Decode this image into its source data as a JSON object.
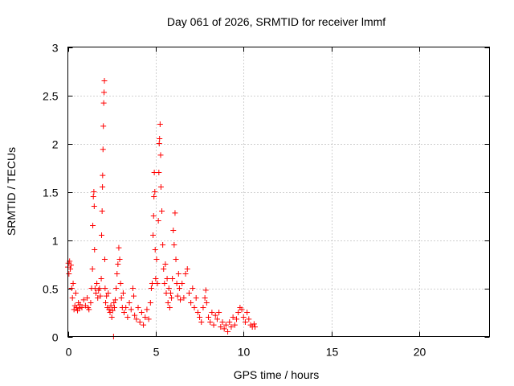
{
  "chart_data": {
    "type": "scatter",
    "title": "Day 061 of 2026, SRMTID for receiver lmmf",
    "xlabel": "GPS time / hours",
    "ylabel": "SRMTID / TECUs",
    "xlim": [
      0,
      24
    ],
    "ylim": [
      0,
      3
    ],
    "xticks": [
      0,
      5,
      10,
      15,
      20
    ],
    "xtick_labels": [
      "0",
      "5",
      "10",
      "15",
      "20"
    ],
    "yticks": [
      0,
      0.5,
      1,
      1.5,
      2,
      2.5,
      3
    ],
    "ytick_labels": [
      "0",
      "0.5",
      "1",
      "1.5",
      "2",
      "2.5",
      "3"
    ],
    "grid": true,
    "marker": "+",
    "series": [
      {
        "name": "SRMTID",
        "color": "#ff0000",
        "points": [
          [
            0.0,
            0.72
          ],
          [
            0.03,
            0.76
          ],
          [
            0.06,
            0.65
          ],
          [
            0.1,
            0.78
          ],
          [
            0.14,
            0.7
          ],
          [
            0.18,
            0.74
          ],
          [
            0.22,
            0.5
          ],
          [
            0.26,
            0.4
          ],
          [
            0.3,
            0.55
          ],
          [
            0.35,
            0.28
          ],
          [
            0.4,
            0.32
          ],
          [
            0.45,
            0.45
          ],
          [
            0.5,
            0.3
          ],
          [
            0.55,
            0.27
          ],
          [
            0.6,
            0.35
          ],
          [
            0.65,
            0.29
          ],
          [
            0.7,
            0.33
          ],
          [
            0.8,
            0.3
          ],
          [
            0.9,
            0.38
          ],
          [
            1.0,
            0.32
          ],
          [
            1.1,
            0.4
          ],
          [
            1.15,
            0.3
          ],
          [
            1.2,
            0.28
          ],
          [
            1.3,
            0.35
          ],
          [
            1.35,
            0.5
          ],
          [
            1.4,
            0.7
          ],
          [
            1.42,
            1.15
          ],
          [
            1.45,
            1.45
          ],
          [
            1.48,
            1.5
          ],
          [
            1.5,
            1.35
          ],
          [
            1.52,
            0.9
          ],
          [
            1.55,
            0.5
          ],
          [
            1.6,
            0.45
          ],
          [
            1.65,
            0.55
          ],
          [
            1.7,
            0.4
          ],
          [
            1.75,
            0.48
          ],
          [
            1.8,
            0.5
          ],
          [
            1.85,
            0.42
          ],
          [
            1.9,
            0.6
          ],
          [
            1.92,
            1.05
          ],
          [
            1.95,
            1.3
          ],
          [
            1.97,
            1.55
          ],
          [
            1.98,
            1.67
          ],
          [
            2.0,
            1.94
          ],
          [
            2.02,
            2.18
          ],
          [
            2.04,
            2.42
          ],
          [
            2.06,
            2.53
          ],
          [
            2.08,
            2.65
          ],
          [
            2.1,
            0.8
          ],
          [
            2.12,
            0.5
          ],
          [
            2.15,
            0.35
          ],
          [
            2.2,
            0.42
          ],
          [
            2.25,
            0.3
          ],
          [
            2.3,
            0.45
          ],
          [
            2.35,
            0.28
          ],
          [
            2.4,
            0.25
          ],
          [
            2.45,
            0.32
          ],
          [
            2.5,
            0.2
          ],
          [
            2.55,
            0.27
          ],
          [
            2.6,
            0.0
          ],
          [
            2.62,
            0.35
          ],
          [
            2.65,
            0.3
          ],
          [
            2.7,
            0.38
          ],
          [
            2.75,
            0.5
          ],
          [
            2.8,
            0.65
          ],
          [
            2.85,
            0.75
          ],
          [
            2.9,
            0.92
          ],
          [
            2.95,
            0.8
          ],
          [
            3.0,
            0.55
          ],
          [
            3.05,
            0.4
          ],
          [
            3.1,
            0.3
          ],
          [
            3.15,
            0.45
          ],
          [
            3.2,
            0.25
          ],
          [
            3.3,
            0.3
          ],
          [
            3.4,
            0.2
          ],
          [
            3.5,
            0.35
          ],
          [
            3.6,
            0.28
          ],
          [
            3.7,
            0.5
          ],
          [
            3.75,
            0.42
          ],
          [
            3.8,
            0.22
          ],
          [
            3.9,
            0.18
          ],
          [
            4.0,
            0.3
          ],
          [
            4.1,
            0.15
          ],
          [
            4.2,
            0.25
          ],
          [
            4.3,
            0.12
          ],
          [
            4.4,
            0.2
          ],
          [
            4.5,
            0.28
          ],
          [
            4.6,
            0.18
          ],
          [
            4.7,
            0.35
          ],
          [
            4.75,
            0.5
          ],
          [
            4.8,
            0.55
          ],
          [
            4.85,
            1.05
          ],
          [
            4.88,
            1.25
          ],
          [
            4.9,
            1.45
          ],
          [
            4.92,
            1.7
          ],
          [
            4.95,
            1.5
          ],
          [
            4.97,
            0.9
          ],
          [
            5.0,
            0.6
          ],
          [
            5.05,
            0.8
          ],
          [
            5.1,
            0.55
          ],
          [
            5.15,
            1.2
          ],
          [
            5.18,
            1.7
          ],
          [
            5.2,
            2.0
          ],
          [
            5.22,
            2.05
          ],
          [
            5.25,
            2.2
          ],
          [
            5.28,
            1.88
          ],
          [
            5.3,
            1.55
          ],
          [
            5.35,
            1.3
          ],
          [
            5.4,
            0.95
          ],
          [
            5.45,
            0.7
          ],
          [
            5.5,
            0.55
          ],
          [
            5.55,
            0.75
          ],
          [
            5.6,
            0.45
          ],
          [
            5.65,
            0.6
          ],
          [
            5.7,
            0.35
          ],
          [
            5.75,
            0.5
          ],
          [
            5.8,
            0.3
          ],
          [
            5.85,
            0.45
          ],
          [
            5.9,
            0.4
          ],
          [
            5.95,
            0.6
          ],
          [
            6.0,
            1.1
          ],
          [
            6.05,
            0.95
          ],
          [
            6.1,
            1.28
          ],
          [
            6.15,
            0.8
          ],
          [
            6.2,
            0.55
          ],
          [
            6.25,
            0.42
          ],
          [
            6.3,
            0.65
          ],
          [
            6.35,
            0.5
          ],
          [
            6.4,
            0.38
          ],
          [
            6.5,
            0.55
          ],
          [
            6.6,
            0.4
          ],
          [
            6.7,
            0.65
          ],
          [
            6.8,
            0.7
          ],
          [
            6.9,
            0.45
          ],
          [
            7.0,
            0.35
          ],
          [
            7.1,
            0.5
          ],
          [
            7.2,
            0.3
          ],
          [
            7.3,
            0.4
          ],
          [
            7.4,
            0.25
          ],
          [
            7.5,
            0.2
          ],
          [
            7.6,
            0.15
          ],
          [
            7.7,
            0.3
          ],
          [
            7.8,
            0.4
          ],
          [
            7.85,
            0.48
          ],
          [
            7.9,
            0.35
          ],
          [
            8.0,
            0.2
          ],
          [
            8.1,
            0.15
          ],
          [
            8.2,
            0.25
          ],
          [
            8.3,
            0.12
          ],
          [
            8.4,
            0.22
          ],
          [
            8.5,
            0.18
          ],
          [
            8.6,
            0.25
          ],
          [
            8.7,
            0.1
          ],
          [
            8.8,
            0.15
          ],
          [
            8.9,
            0.08
          ],
          [
            9.0,
            0.12
          ],
          [
            9.1,
            0.05
          ],
          [
            9.2,
            0.15
          ],
          [
            9.3,
            0.1
          ],
          [
            9.4,
            0.2
          ],
          [
            9.5,
            0.12
          ],
          [
            9.6,
            0.18
          ],
          [
            9.7,
            0.25
          ],
          [
            9.8,
            0.3
          ],
          [
            9.9,
            0.28
          ],
          [
            10.0,
            0.2
          ],
          [
            10.1,
            0.15
          ],
          [
            10.2,
            0.25
          ],
          [
            10.3,
            0.18
          ],
          [
            10.4,
            0.12
          ],
          [
            10.5,
            0.1
          ],
          [
            10.6,
            0.13
          ],
          [
            10.65,
            0.1
          ]
        ]
      }
    ]
  }
}
